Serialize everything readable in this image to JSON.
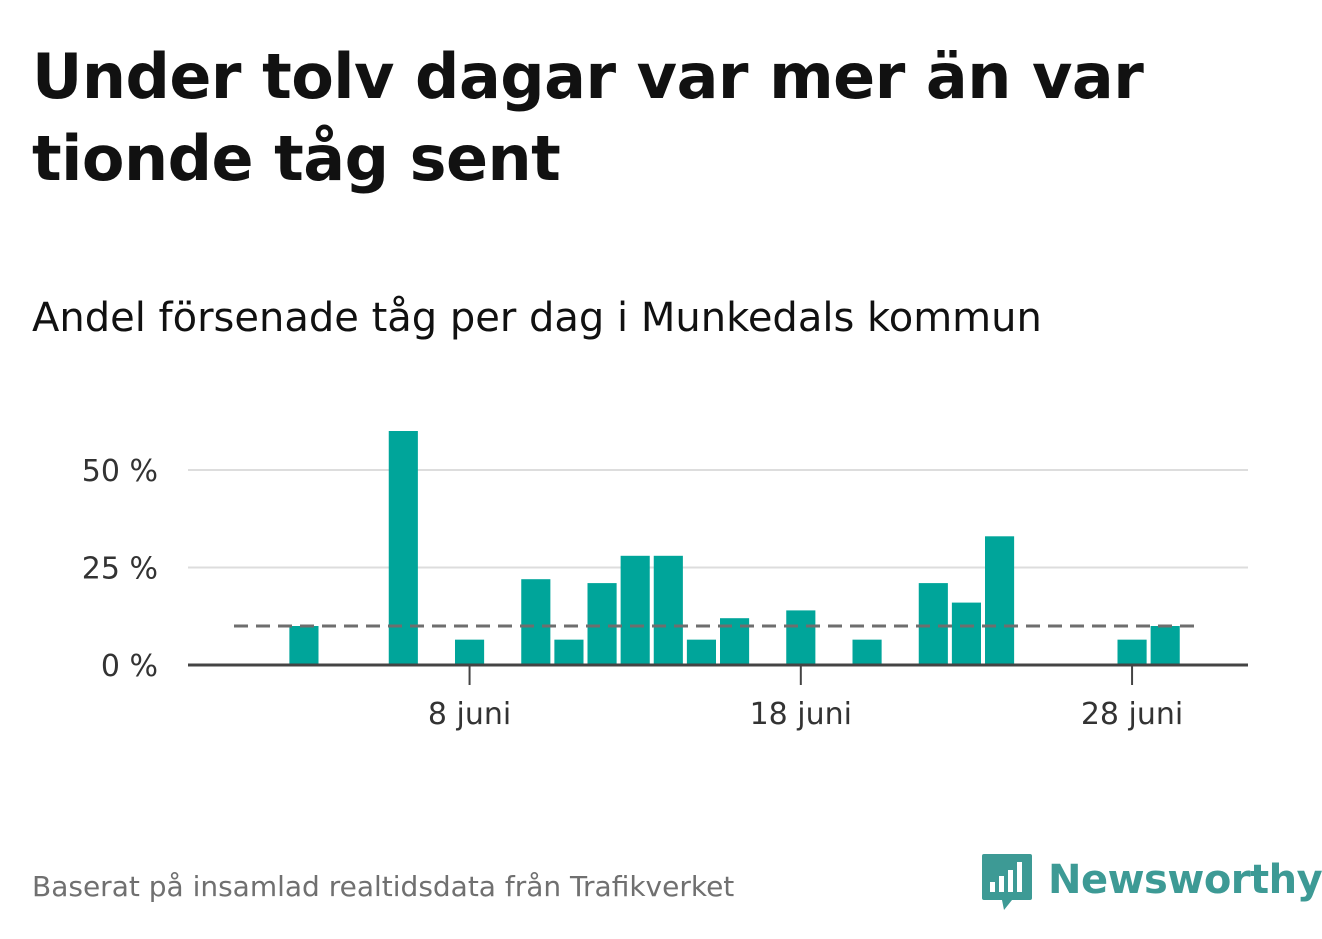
{
  "chart_data": {
    "type": "bar",
    "title": "Under tolv dagar var mer än var tionde tåg sent",
    "subtitle": "Andel försenade tåg per dag i Munkedals kommun",
    "x_start": "2023-06-01",
    "x_end": "2023-06-30",
    "x_ticks": [
      {
        "date": "2023-06-08",
        "label": "8 juni"
      },
      {
        "date": "2023-06-18",
        "label": "18 juni"
      },
      {
        "date": "2023-06-28",
        "label": "28 juni"
      }
    ],
    "y_ticks": [
      {
        "value": 0,
        "label": "0 %"
      },
      {
        "value": 25,
        "label": "25 %"
      },
      {
        "value": 50,
        "label": "50 %"
      }
    ],
    "ylim": [
      0,
      60
    ],
    "reference_line": {
      "value": 10,
      "style": "dashed"
    },
    "bar_color": "#00a59a",
    "x": [
      "2023-06-03",
      "2023-06-06",
      "2023-06-08",
      "2023-06-10",
      "2023-06-11",
      "2023-06-12",
      "2023-06-13",
      "2023-06-14",
      "2023-06-15",
      "2023-06-16",
      "2023-06-18",
      "2023-06-20",
      "2023-06-22",
      "2023-06-23",
      "2023-06-24",
      "2023-06-28",
      "2023-06-29"
    ],
    "values": [
      10,
      60,
      6.5,
      22,
      6.5,
      21,
      28,
      28,
      6.5,
      12,
      14,
      6.5,
      21,
      16,
      33,
      6.5,
      10
    ],
    "grid": true
  },
  "footer": {
    "source": "Baserat på insamlad realtidsdata från Trafikverket",
    "brand": "Newsworthy",
    "brand_color": "#3d9a95",
    "brand_icon": "bar-chart-bubble-icon"
  }
}
